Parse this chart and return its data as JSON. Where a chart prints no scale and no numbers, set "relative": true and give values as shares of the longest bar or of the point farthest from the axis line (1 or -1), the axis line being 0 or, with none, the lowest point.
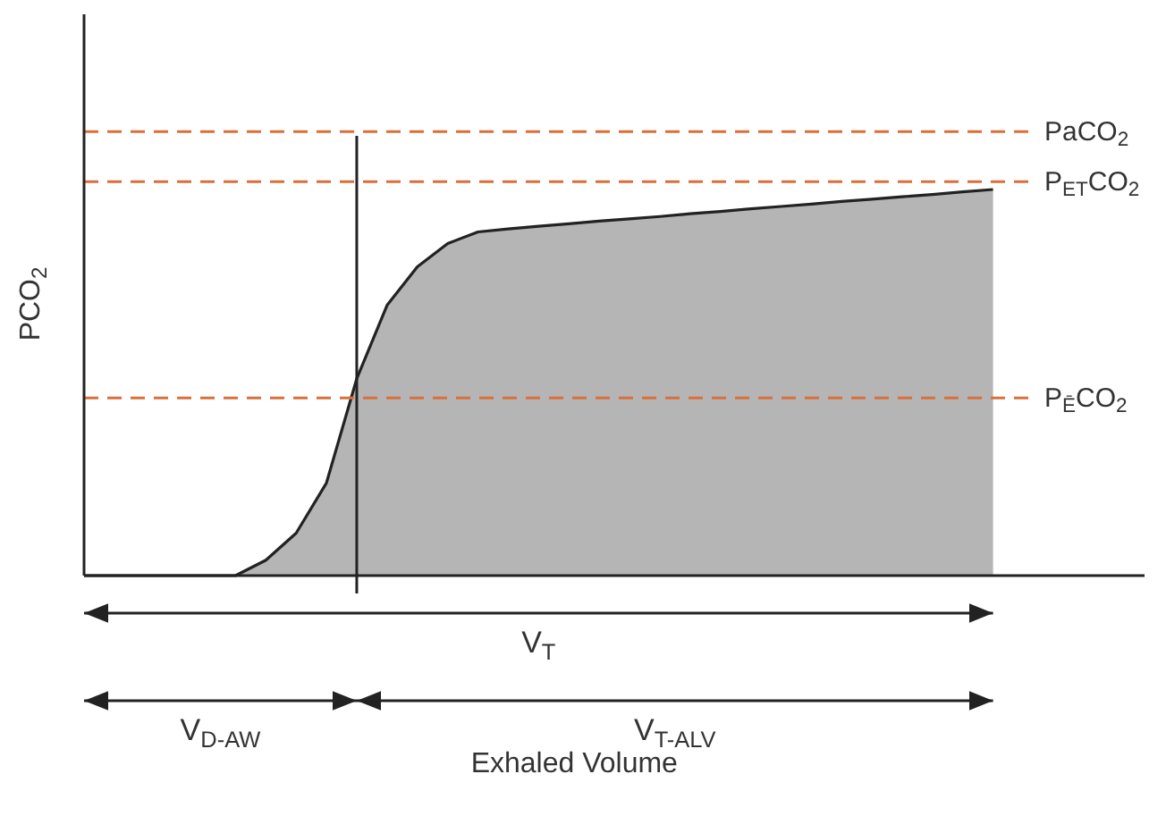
{
  "chart_data": {
    "type": "area",
    "relative": true,
    "ylabel": "PCO$_{2}$",
    "categories": [
      null,
      null,
      null,
      null,
      null,
      null,
      null,
      null,
      null,
      null,
      null,
      null,
      null,
      null,
      null,
      null,
      null,
      null,
      null,
      null,
      null,
      null,
      null,
      null,
      null,
      null,
      null,
      null,
      null,
      null,
      null,
      null,
      null,
      null,
      null,
      null
    ],
    "series": [
      {
        "color": "#b5b5b5",
        "values": [
          0,
          0,
          0,
          0,
          0,
          0,
          0.04,
          0.11,
          0.24,
          0.51,
          0.7,
          0.8,
          0.86,
          0.89,
          0.898,
          0.905,
          0.911,
          0.918,
          0.924,
          0.93,
          0.937,
          0.943,
          0.95,
          0.956,
          0.962,
          0.969,
          0.975,
          0.981,
          0.987,
          0.994,
          1,
          null,
          null,
          null,
          null,
          null
        ]
      }
    ],
    "ref_lines": [
      {
        "axis": "y",
        "value": 1.15,
        "label": "PaCO$_{2}$",
        "color": "#d9703a",
        "line_style": "dashed"
      },
      {
        "axis": "y",
        "value": 1.02,
        "label": "P$_{ET}$CO$_{2}$",
        "color": "#d9703a",
        "line_style": "dashed"
      },
      {
        "axis": "y",
        "value": 0.46,
        "label": "P$_{Ē}$CO$_{2}$",
        "color": "#d9703a",
        "line_style": "dashed"
      }
    ],
    "annotations": [
      "V$_{T}$",
      "V$_{D-AW}$",
      "V$_{T-ALV}$",
      "Exhaled Volume"
    ]
  }
}
